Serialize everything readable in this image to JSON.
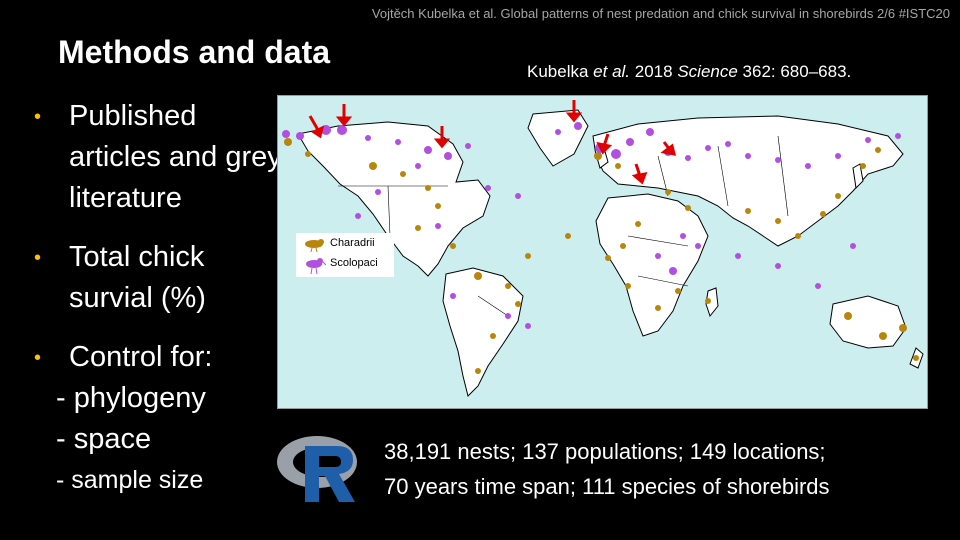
{
  "header": "Vojtěch Kubelka et al. Global patterns of nest predation and chick survival in shorebirds  2/6  #ISTC20",
  "title": "Methods and data",
  "citation": {
    "authors": "Kubelka",
    "etal": "et al.",
    "year": "2018",
    "journal": "Science",
    "pages": "362: 680–683."
  },
  "bullets": [
    {
      "text": "Published articles and grey literature"
    },
    {
      "text": "Total chick survial (%)"
    },
    {
      "text": "Control for:"
    }
  ],
  "controls": [
    "- phylogeny",
    "- space",
    "- sample size"
  ],
  "legend": {
    "charadrii": "Charadrii",
    "scolopaci": "Scolopaci"
  },
  "colors": {
    "charadrii": "#b8860b",
    "scolopaci": "#b04fe0",
    "arrow": "#e00000",
    "ocean": "#cdeeef",
    "bullet": "#ffc000"
  },
  "stats": {
    "line1": "38,191 nests; 137 populations; 149 locations;",
    "line2": "70 years time span; 111 species of shorebirds"
  },
  "logo": "R-logo"
}
